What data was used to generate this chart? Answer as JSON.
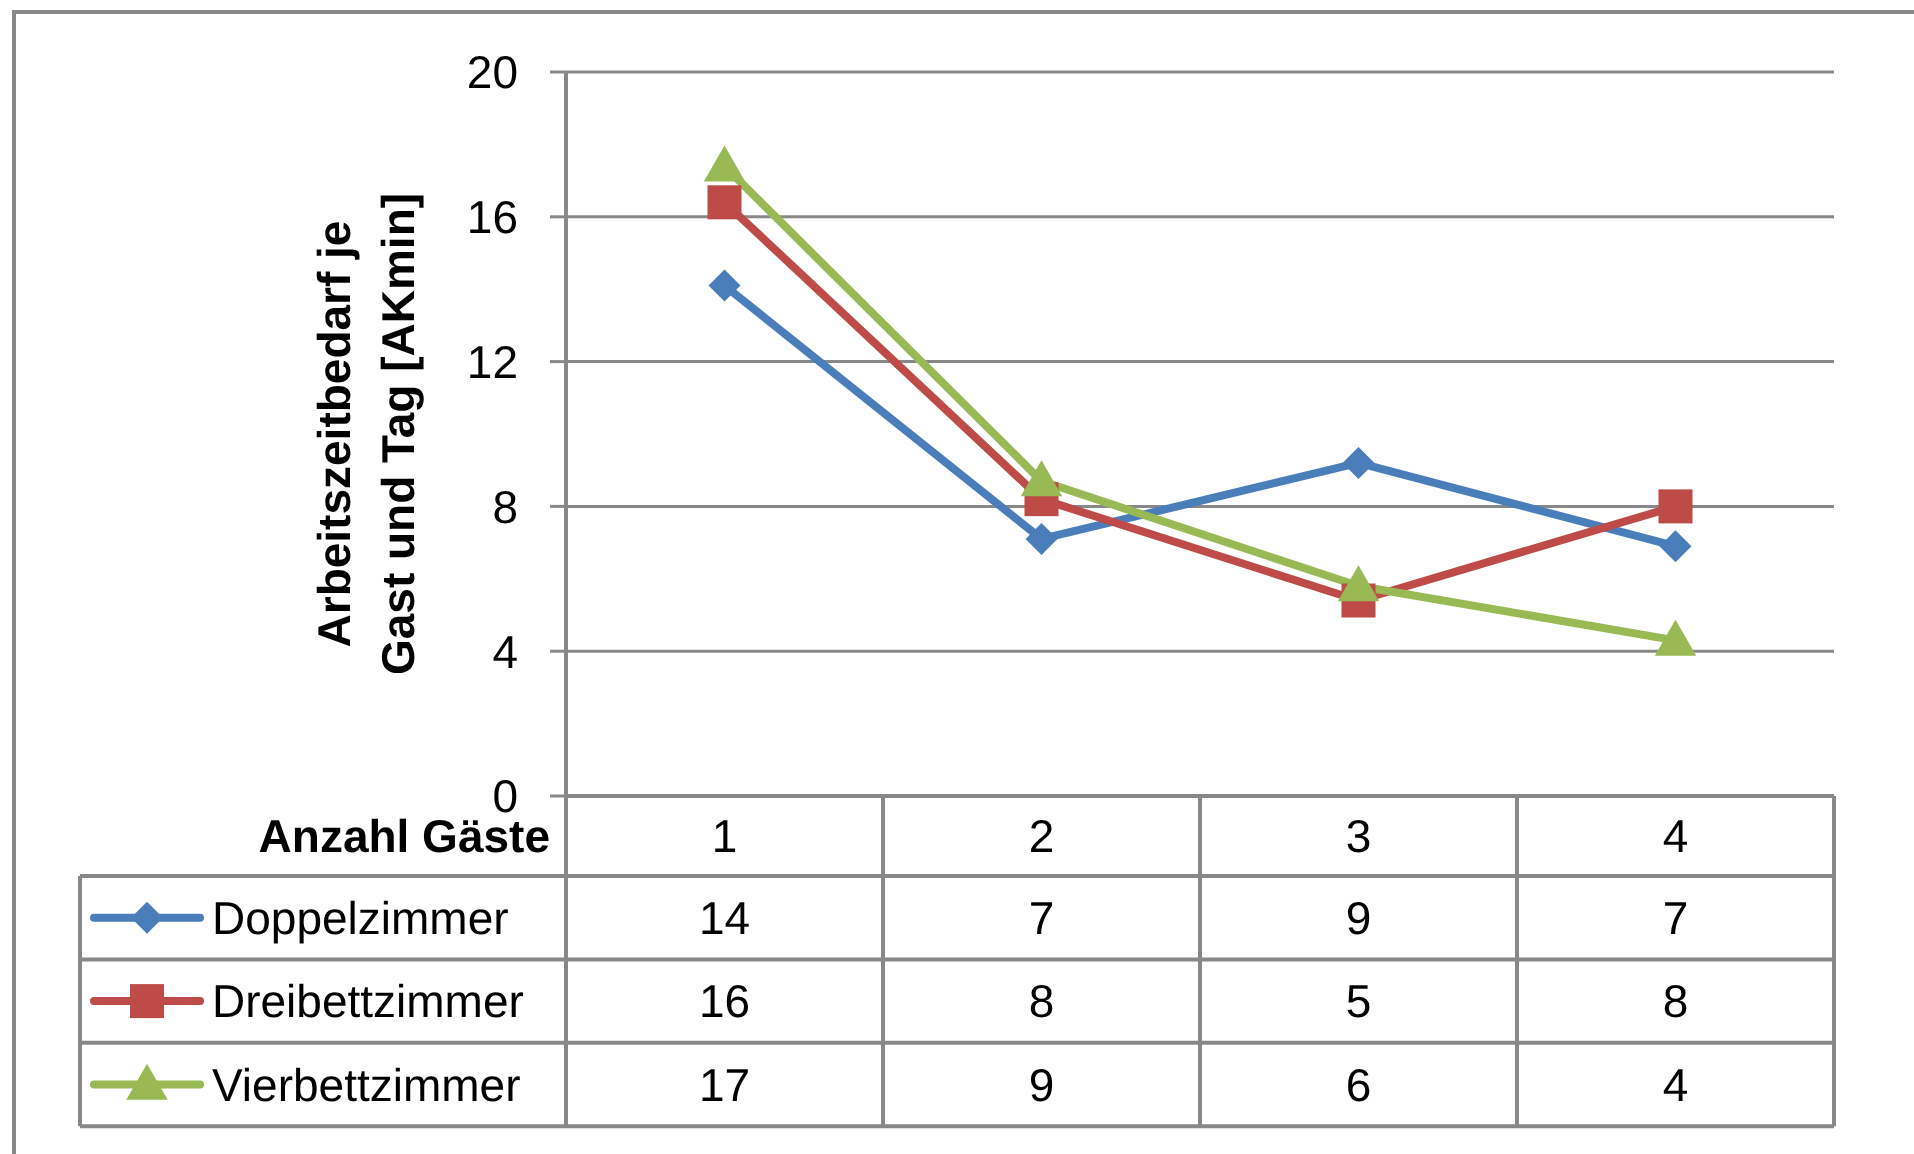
{
  "chart_data": {
    "type": "line",
    "ylabel": "Arbeitszeitbedarf je Gast und Tag [AKmin]",
    "xlabel": "Anzahl Gäste",
    "categories": [
      "1",
      "2",
      "3",
      "4"
    ],
    "series": [
      {
        "name": "Doppelzimmer",
        "color": "#4a7ebb",
        "marker": "diamond",
        "values": [
          14.1,
          7.1,
          9.2,
          6.9
        ],
        "value_labels": [
          "14",
          "7",
          "9",
          "7"
        ]
      },
      {
        "name": "Dreibettzimmer",
        "color": "#be4b48",
        "marker": "square",
        "values": [
          16.4,
          8.2,
          5.4,
          8.0
        ],
        "value_labels": [
          "16",
          "8",
          "5",
          "8"
        ]
      },
      {
        "name": "Vierbettzimmer",
        "color": "#98b954",
        "marker": "triangle",
        "values": [
          17.4,
          8.7,
          5.8,
          4.3
        ],
        "value_labels": [
          "17",
          "9",
          "6",
          "4"
        ]
      }
    ],
    "ylim": [
      0,
      20
    ],
    "yticks": [
      0,
      4,
      8,
      12,
      16,
      20
    ],
    "grid": "y",
    "legend": "bottom left"
  }
}
